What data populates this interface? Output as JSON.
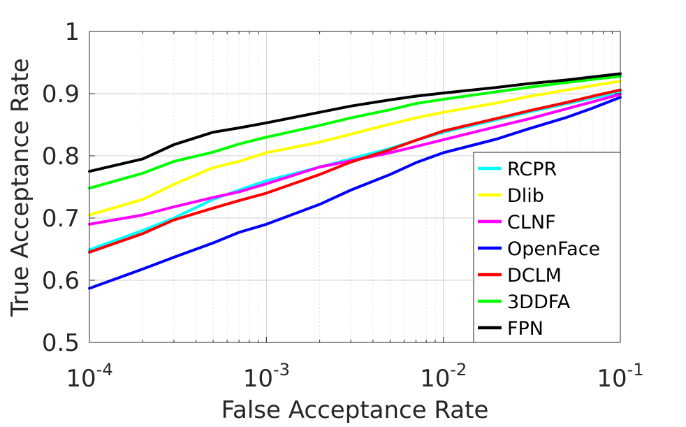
{
  "chart_data": {
    "type": "line",
    "xscale": "log",
    "xlabel": "False Acceptance Rate",
    "ylabel": "True Acceptance Rate",
    "xlim": [
      0.0001,
      0.1
    ],
    "ylim": [
      0.5,
      1.0
    ],
    "grid": true,
    "legend_position": "bottom-right",
    "x_ticks": [
      {
        "value": 0.0001,
        "base": "10",
        "exp": "-4"
      },
      {
        "value": 0.001,
        "base": "10",
        "exp": "-3"
      },
      {
        "value": 0.01,
        "base": "10",
        "exp": "-2"
      },
      {
        "value": 0.1,
        "base": "10",
        "exp": "-1"
      }
    ],
    "y_ticks": [
      {
        "value": 0.5,
        "label": "0.5"
      },
      {
        "value": 0.6,
        "label": "0.6"
      },
      {
        "value": 0.7,
        "label": "0.7"
      },
      {
        "value": 0.8,
        "label": "0.8"
      },
      {
        "value": 0.9,
        "label": "0.9"
      },
      {
        "value": 1.0,
        "label": "1"
      }
    ],
    "x": [
      0.0001,
      0.0002,
      0.0003,
      0.0005,
      0.0007,
      0.001,
      0.002,
      0.003,
      0.005,
      0.007,
      0.01,
      0.02,
      0.03,
      0.05,
      0.07,
      0.1
    ],
    "series": [
      {
        "name": "RCPR",
        "color": "#00ffff",
        "values": [
          0.649,
          0.68,
          0.7,
          0.73,
          0.745,
          0.76,
          0.782,
          0.795,
          0.812,
          0.825,
          0.838,
          0.858,
          0.87,
          0.884,
          0.893,
          0.902
        ]
      },
      {
        "name": "Dlib",
        "color": "#ffff00",
        "values": [
          0.705,
          0.73,
          0.754,
          0.781,
          0.791,
          0.805,
          0.822,
          0.835,
          0.851,
          0.861,
          0.87,
          0.885,
          0.895,
          0.906,
          0.913,
          0.92
        ]
      },
      {
        "name": "CLNF",
        "color": "#ff00ff",
        "values": [
          0.69,
          0.705,
          0.718,
          0.733,
          0.742,
          0.755,
          0.782,
          0.792,
          0.805,
          0.815,
          0.826,
          0.847,
          0.859,
          0.876,
          0.887,
          0.899
        ]
      },
      {
        "name": "OpenFace",
        "color": "#0000ff",
        "values": [
          0.587,
          0.618,
          0.637,
          0.66,
          0.677,
          0.69,
          0.722,
          0.745,
          0.77,
          0.789,
          0.805,
          0.827,
          0.843,
          0.862,
          0.877,
          0.894
        ]
      },
      {
        "name": "DCLM",
        "color": "#ff0000",
        "values": [
          0.645,
          0.675,
          0.697,
          0.716,
          0.728,
          0.74,
          0.77,
          0.79,
          0.81,
          0.825,
          0.84,
          0.86,
          0.872,
          0.886,
          0.896,
          0.906
        ]
      },
      {
        "name": "3DDFA",
        "color": "#00ff00",
        "values": [
          0.748,
          0.772,
          0.791,
          0.806,
          0.819,
          0.83,
          0.849,
          0.861,
          0.874,
          0.884,
          0.891,
          0.903,
          0.91,
          0.918,
          0.923,
          0.928
        ]
      },
      {
        "name": "FPN",
        "color": "#000000",
        "values": [
          0.775,
          0.795,
          0.818,
          0.838,
          0.845,
          0.853,
          0.87,
          0.88,
          0.89,
          0.896,
          0.901,
          0.91,
          0.916,
          0.922,
          0.927,
          0.932
        ]
      }
    ]
  }
}
